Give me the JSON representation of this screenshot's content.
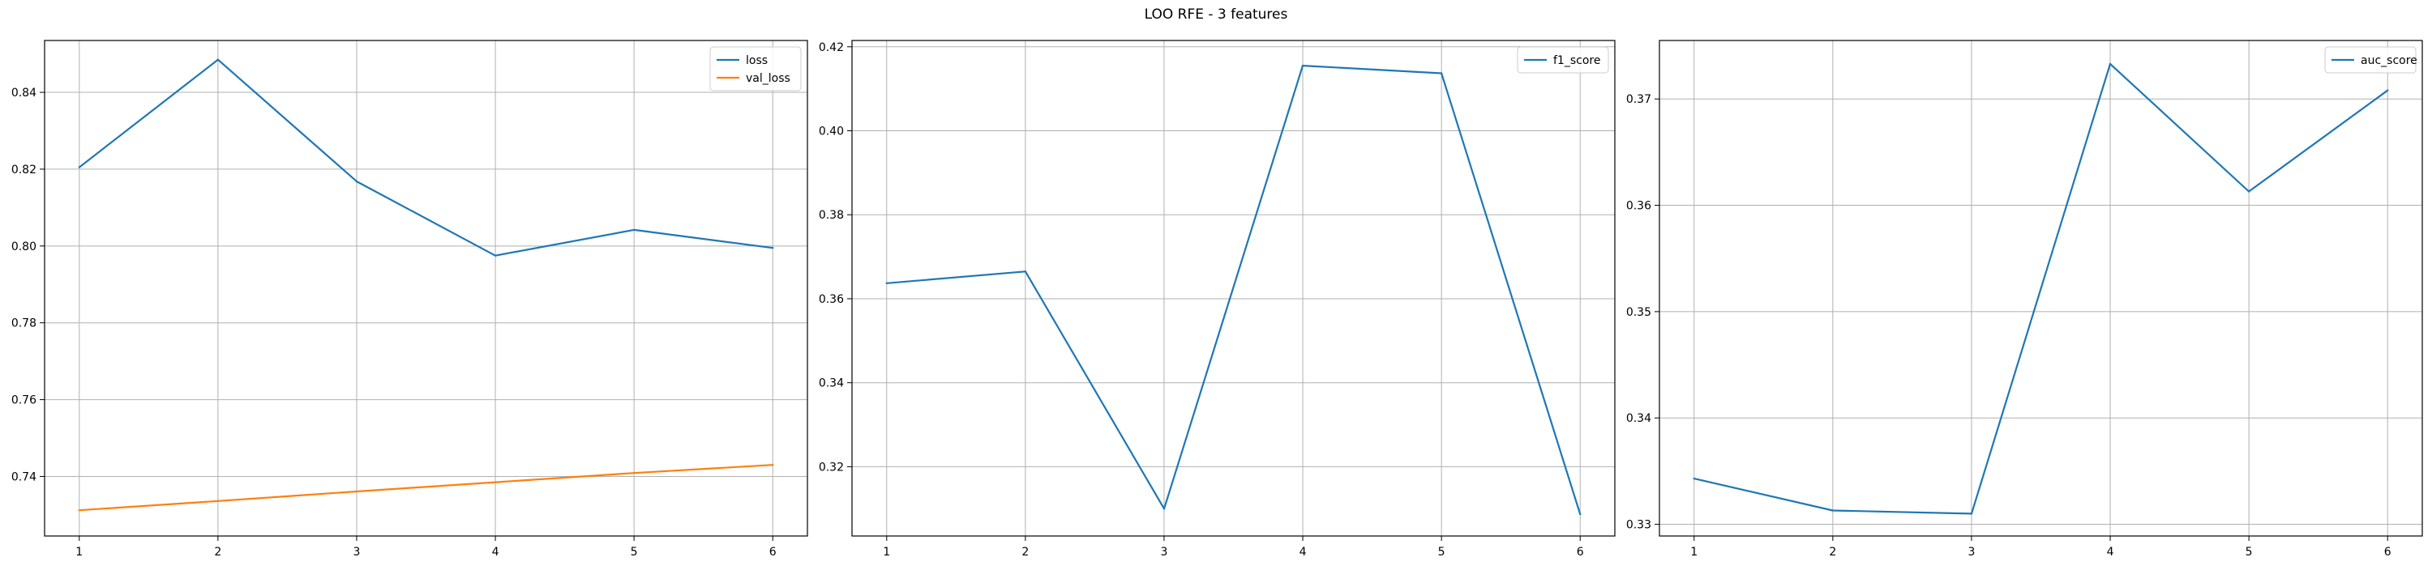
{
  "figure": {
    "title": "LOO RFE - 3 features"
  },
  "chart_data": [
    {
      "type": "line",
      "title": "",
      "xlabel": "",
      "ylabel": "",
      "x": [
        1,
        2,
        3,
        4,
        5,
        6
      ],
      "xlim": [
        0.75,
        6.25
      ],
      "ylim": [
        0.7245,
        0.8535
      ],
      "xticks": [
        "1",
        "2",
        "3",
        "4",
        "5",
        "6"
      ],
      "yticks": [
        "0.74",
        "0.76",
        "0.78",
        "0.80",
        "0.82",
        "0.84"
      ],
      "grid": true,
      "legend": "top-right",
      "series": [
        {
          "name": "loss",
          "color": "#1f77b4",
          "values": [
            0.8205,
            0.8485,
            0.8168,
            0.7975,
            0.8042,
            0.7995
          ]
        },
        {
          "name": "val_loss",
          "color": "#ff7f0e",
          "values": [
            0.7312,
            0.7336,
            0.7361,
            0.7385,
            0.7409,
            0.743
          ]
        }
      ]
    },
    {
      "type": "line",
      "title": "",
      "xlabel": "",
      "ylabel": "",
      "x": [
        1,
        2,
        3,
        4,
        5,
        6
      ],
      "xlim": [
        0.75,
        6.25
      ],
      "ylim": [
        0.3035,
        0.4215
      ],
      "xticks": [
        "1",
        "2",
        "3",
        "4",
        "5",
        "6"
      ],
      "yticks": [
        "0.32",
        "0.34",
        "0.36",
        "0.38",
        "0.40",
        "0.42"
      ],
      "grid": true,
      "legend": "top-right",
      "series": [
        {
          "name": "f1_score",
          "color": "#1f77b4",
          "values": [
            0.3637,
            0.3665,
            0.31,
            0.4155,
            0.4137,
            0.3087
          ]
        }
      ]
    },
    {
      "type": "line",
      "title": "",
      "xlabel": "",
      "ylabel": "",
      "x": [
        1,
        2,
        3,
        4,
        5,
        6
      ],
      "xlim": [
        0.75,
        6.25
      ],
      "ylim": [
        0.3289,
        0.3755
      ],
      "xticks": [
        "1",
        "2",
        "3",
        "4",
        "5",
        "6"
      ],
      "yticks": [
        "0.33",
        "0.34",
        "0.35",
        "0.36",
        "0.37"
      ],
      "grid": true,
      "legend": "top-right",
      "series": [
        {
          "name": "auc_score",
          "color": "#1f77b4",
          "values": [
            0.3343,
            0.3313,
            0.331,
            0.3733,
            0.3613,
            0.3708
          ]
        }
      ]
    }
  ]
}
